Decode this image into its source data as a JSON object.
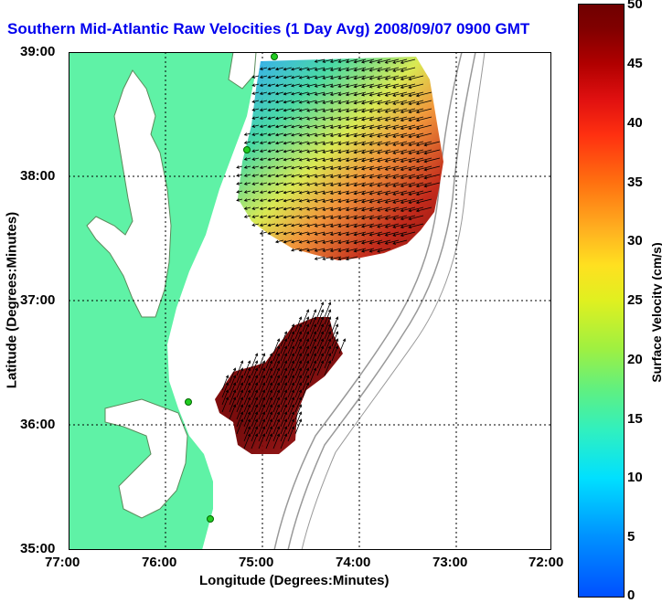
{
  "title": "Southern Mid-Atlantic Raw Velocities (1 Day Avg) 2008/09/07 0900 GMT",
  "x_axis": {
    "label": "Longitude (Degrees:Minutes)",
    "ticks": [
      "77:00",
      "76:00",
      "75:00",
      "74:00",
      "73:00",
      "72:00"
    ]
  },
  "y_axis": {
    "label": "Latitude (Degrees:Minutes)",
    "ticks": [
      "39:00",
      "38:00",
      "37:00",
      "36:00",
      "35:00"
    ]
  },
  "colorbar": {
    "label": "Surface Velocity (cm/s)",
    "ticks": [
      "50",
      "45",
      "40",
      "35",
      "30",
      "25",
      "20",
      "15",
      "10",
      "5",
      "0"
    ],
    "range": [
      0,
      50
    ]
  },
  "map": {
    "land_color": "#5ff2a6",
    "bathymetry_color": "#999999",
    "grid_style": "dotted",
    "north_field_typical_speed": "high in east and south",
    "south_field_typical_speed": "high"
  }
}
